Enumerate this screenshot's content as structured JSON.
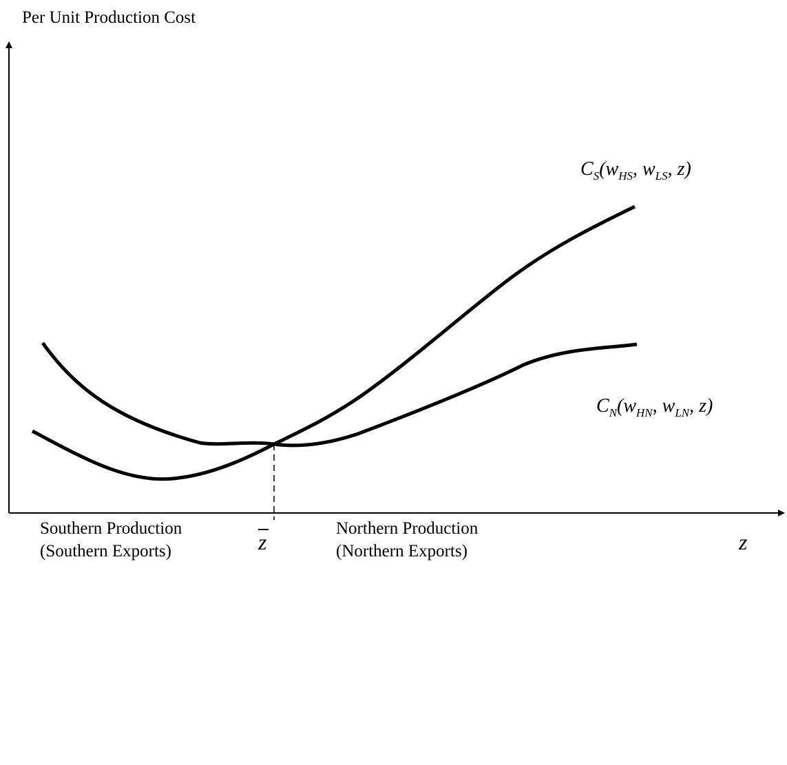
{
  "y_axis_label": "Per Unit Production Cost",
  "x_axis_label": "z",
  "threshold_label": "z",
  "curves": [
    {
      "parts": [
        {
          "text": "C",
          "sub": false
        },
        {
          "text": "S",
          "sub": true
        },
        {
          "text": "(w",
          "sub": false
        },
        {
          "text": "HS",
          "sub": true
        },
        {
          "text": ", w",
          "sub": false
        },
        {
          "text": "LS",
          "sub": true
        },
        {
          "text": ", z)",
          "sub": false
        }
      ]
    },
    {
      "parts": [
        {
          "text": "C",
          "sub": false
        },
        {
          "text": "N",
          "sub": true
        },
        {
          "text": "(w",
          "sub": false
        },
        {
          "text": "HN",
          "sub": true
        },
        {
          "text": ", w",
          "sub": false
        },
        {
          "text": "LN",
          "sub": true
        },
        {
          "text": ", z)",
          "sub": false
        }
      ]
    }
  ],
  "regions": [
    {
      "line1": "Southern Production",
      "line2": "(Southern Exports)"
    },
    {
      "line1": "Northern Production",
      "line2": "(Northern Exports)"
    }
  ]
}
